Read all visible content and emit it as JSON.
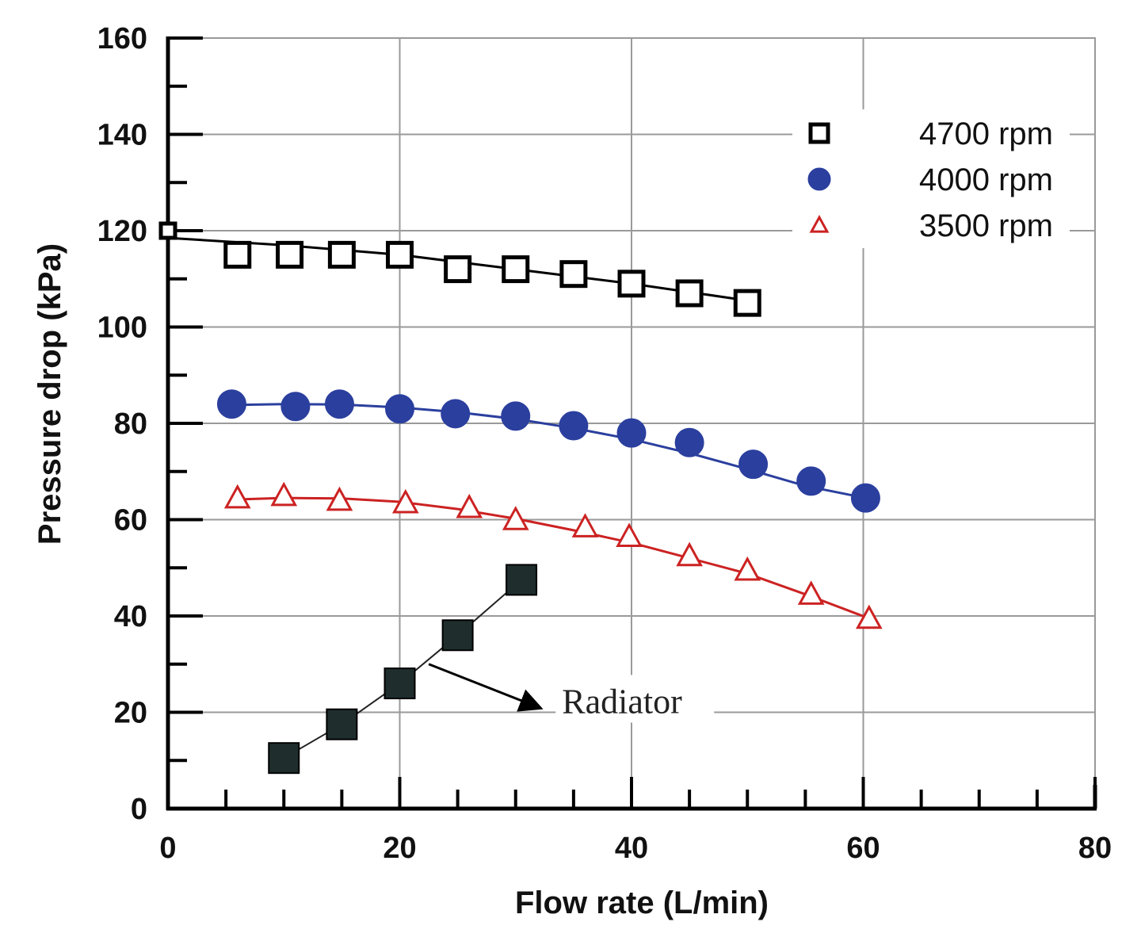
{
  "chart_data": {
    "type": "line",
    "title": "",
    "xlabel": "Flow rate (L/min)",
    "ylabel": "Pressure drop (kPa)",
    "xlim": [
      0,
      80
    ],
    "ylim": [
      0,
      160
    ],
    "x_ticks": [
      "0",
      "20",
      "40",
      "60",
      "80"
    ],
    "y_ticks": [
      "0",
      "20",
      "40",
      "60",
      "80",
      "100",
      "120",
      "140",
      "160"
    ],
    "grid": true,
    "legend_position": "top-right",
    "series": [
      {
        "name": "4700 rpm",
        "marker": "open-square",
        "color": "#000000",
        "x": [
          0,
          6,
          10.5,
          15,
          20,
          25,
          30,
          35,
          40,
          45,
          50
        ],
        "y": [
          120,
          115,
          115,
          115,
          115,
          112,
          112,
          111,
          109,
          107,
          105
        ],
        "fit": [
          [
            0,
            118.5
          ],
          [
            10,
            117
          ],
          [
            20,
            115
          ],
          [
            30,
            112
          ],
          [
            40,
            109
          ],
          [
            50,
            105.5
          ]
        ]
      },
      {
        "name": "4000 rpm",
        "marker": "filled-circle",
        "color": "#2b3f9e",
        "x": [
          5.5,
          11,
          14.8,
          20,
          24.8,
          30,
          35,
          40,
          45,
          50.5,
          55.5,
          60.2
        ],
        "y": [
          84,
          83.5,
          84,
          83,
          82,
          81.5,
          79.5,
          78,
          76,
          71.5,
          68,
          64.5
        ],
        "fit": [
          [
            5.5,
            83.8
          ],
          [
            10,
            84
          ],
          [
            15,
            83.9
          ],
          [
            20,
            83.3
          ],
          [
            25,
            82.3
          ],
          [
            30,
            80.9
          ],
          [
            35,
            79
          ],
          [
            40,
            76.7
          ],
          [
            45,
            73.8
          ],
          [
            50,
            70.5
          ],
          [
            55,
            67
          ],
          [
            60.2,
            64.5
          ]
        ]
      },
      {
        "name": "3500 rpm",
        "marker": "open-triangle",
        "color": "#cc2222",
        "x": [
          6,
          10,
          14.8,
          20.5,
          26,
          30,
          36,
          39.8,
          45,
          50,
          55.5,
          60.5
        ],
        "y": [
          64.5,
          65,
          64,
          63.5,
          62.5,
          60,
          58.5,
          56.5,
          52.5,
          49.5,
          44.5,
          39.5
        ],
        "fit": [
          [
            6,
            64.2
          ],
          [
            10,
            64.5
          ],
          [
            15,
            64.4
          ],
          [
            20,
            63.7
          ],
          [
            25,
            62.2
          ],
          [
            30,
            60.2
          ],
          [
            35,
            57.8
          ],
          [
            40,
            55.2
          ],
          [
            45,
            52
          ],
          [
            50,
            48.8
          ],
          [
            55,
            44.5
          ],
          [
            60.5,
            39.5
          ]
        ]
      },
      {
        "name": "Radiator",
        "marker": "filled-square",
        "color": "#1f2d2d",
        "x": [
          10,
          15,
          20,
          25,
          30.5
        ],
        "y": [
          10.5,
          17.5,
          26,
          36,
          47.5
        ]
      }
    ],
    "annotations": [
      {
        "text": "Radiator",
        "x": 34,
        "y": 20.5,
        "arrow_from": [
          22.5,
          30
        ],
        "arrow_to": [
          32,
          21
        ]
      }
    ]
  }
}
